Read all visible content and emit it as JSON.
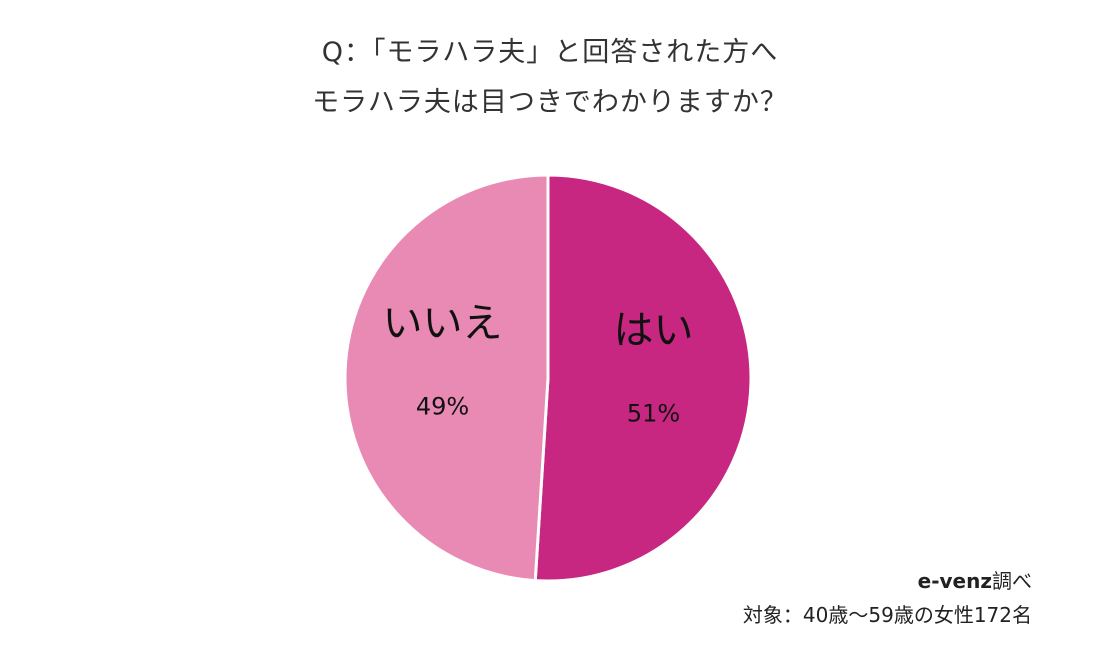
{
  "title": {
    "line1": "Q：「モラハラ夫」と回答された方へ",
    "line2": "モラハラ夫は目つきでわかりますか？"
  },
  "chart_data": {
    "type": "pie",
    "slices": [
      {
        "label": "はい",
        "value": 51,
        "value_label": "51%",
        "color": "#C72781"
      },
      {
        "label": "いいえ",
        "value": 49,
        "value_label": "49%",
        "color": "#E98AB4"
      }
    ],
    "start": "12 o'clock",
    "direction": "clockwise"
  },
  "source": {
    "credit_brand": "e-venz",
    "credit_suffix": "調べ",
    "subjects": "対象：40歳〜59歳の女性172名"
  }
}
